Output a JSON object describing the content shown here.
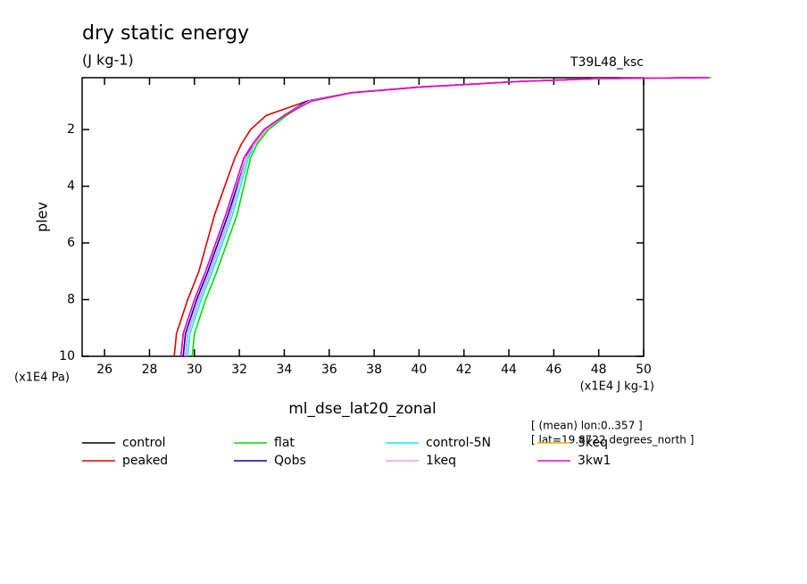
{
  "chart_data": {
    "type": "line",
    "title": "dry static energy",
    "subtitle": "(J kg-1)",
    "run_label": "T39L48_ksc",
    "x_label": "ml_dse_lat20_zonal",
    "y_label": "plev",
    "y_unit": "(x1E4 Pa)",
    "x_unit": "(x1E4 J kg-1)",
    "annotations": [
      "[ (mean) lon:0..357 ]",
      "[ lat=19.8722 degrees_north ]"
    ],
    "y": [
      10,
      9.2,
      8,
      7,
      5,
      3,
      2.5,
      2,
      1.5,
      1,
      0.7,
      0.5,
      0.3,
      0.2,
      0.17
    ],
    "series": [
      {
        "name": "control",
        "color": "#000000",
        "values": [
          29.6,
          29.7,
          30.2,
          30.7,
          31.6,
          32.3,
          32.7,
          33.2,
          34.0,
          35.0,
          37.0,
          40.0,
          44.5,
          48.0,
          52.8
        ]
      },
      {
        "name": "peaked",
        "color": "#e00000",
        "values": [
          29.1,
          29.2,
          29.7,
          30.2,
          30.9,
          31.8,
          32.1,
          32.5,
          33.2,
          35.0,
          37.0,
          40.0,
          44.5,
          48.0,
          52.7
        ]
      },
      {
        "name": "flat",
        "color": "#00dd00",
        "values": [
          29.9,
          30.0,
          30.5,
          31.0,
          31.9,
          32.5,
          32.8,
          33.3,
          34.1,
          35.1,
          37.0,
          40.0,
          44.5,
          48.0,
          53.0
        ]
      },
      {
        "name": "Qobs",
        "color": "#0000cc",
        "values": [
          29.5,
          29.6,
          30.1,
          30.6,
          31.5,
          32.3,
          32.6,
          33.1,
          34.0,
          35.0,
          37.0,
          40.0,
          44.5,
          48.0,
          52.8
        ]
      },
      {
        "name": "control-5N",
        "color": "#00eeee",
        "values": [
          29.7,
          29.8,
          30.3,
          30.8,
          31.7,
          32.4,
          32.7,
          33.2,
          34.0,
          35.1,
          37.0,
          40.0,
          44.5,
          48.0,
          52.9
        ]
      },
      {
        "name": "1keq",
        "color": "#e8a0e0",
        "values": [
          29.6,
          29.7,
          30.2,
          30.7,
          31.6,
          32.3,
          32.7,
          33.2,
          34.0,
          35.1,
          37.0,
          40.0,
          44.5,
          48.0,
          52.8
        ]
      },
      {
        "name": "3keq",
        "color": "#f0b000",
        "values": [
          29.4,
          29.5,
          30.0,
          30.5,
          31.4,
          32.2,
          32.6,
          33.1,
          34.0,
          35.2,
          37.0,
          40.1,
          44.6,
          48.1,
          52.9
        ]
      },
      {
        "name": "3kw1",
        "color": "#ee00cc",
        "values": [
          29.4,
          29.5,
          30.0,
          30.5,
          31.4,
          32.2,
          32.6,
          33.1,
          34.0,
          35.2,
          37.0,
          40.1,
          44.6,
          48.1,
          52.9
        ]
      }
    ],
    "xlim": [
      25,
      50
    ],
    "xticks": [
      26,
      28,
      30,
      32,
      34,
      36,
      38,
      40,
      42,
      44,
      46,
      48,
      50
    ],
    "ylim": [
      10,
      0.17
    ],
    "yticks": [
      2,
      4,
      6,
      8,
      10
    ]
  }
}
